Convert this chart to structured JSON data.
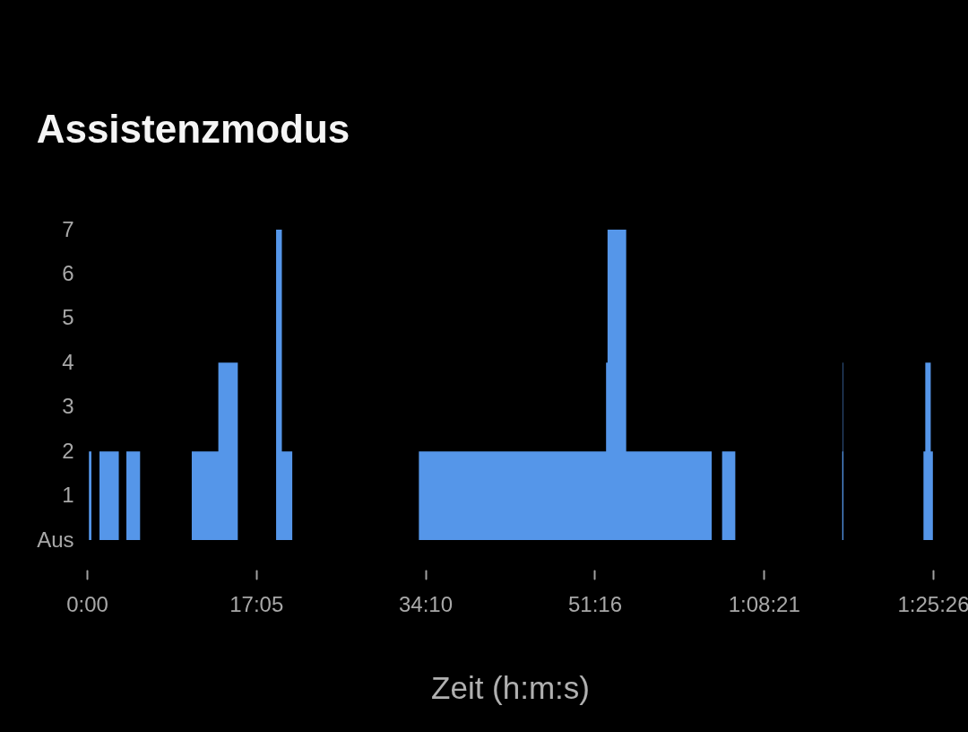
{
  "chart_data": {
    "type": "area",
    "title": "Assistenzmodus",
    "xlabel": "Zeit (h:m:s)",
    "x": [
      0,
      12,
      27,
      76,
      193,
      239,
      322,
      635,
      796,
      914,
      1146,
      1181,
      1244,
      2011,
      3145,
      3154,
      3267,
      3785,
      3848,
      3928,
      4576,
      4580,
      4583,
      5068,
      5079,
      5112,
      5125
    ],
    "values": [
      0,
      2,
      0,
      2,
      0,
      2,
      0,
      2,
      4,
      0,
      7,
      2,
      0,
      2,
      4,
      7,
      2,
      0,
      2,
      0,
      2,
      4,
      0,
      2,
      4,
      2,
      0
    ],
    "color": "#5596e9",
    "xlim": [
      0,
      5126
    ],
    "xticks": [
      {
        "value": 0,
        "label": "0:00"
      },
      {
        "value": 1025,
        "label": "17:05"
      },
      {
        "value": 2050,
        "label": "34:10"
      },
      {
        "value": 3076,
        "label": "51:16"
      },
      {
        "value": 4101,
        "label": "1:08:21"
      },
      {
        "value": 5126,
        "label": "1:25:26"
      }
    ],
    "ylim": [
      0,
      7
    ],
    "yticks": [
      {
        "value": 0,
        "label": "Aus"
      },
      1,
      2,
      3,
      4,
      5,
      6,
      7
    ]
  }
}
